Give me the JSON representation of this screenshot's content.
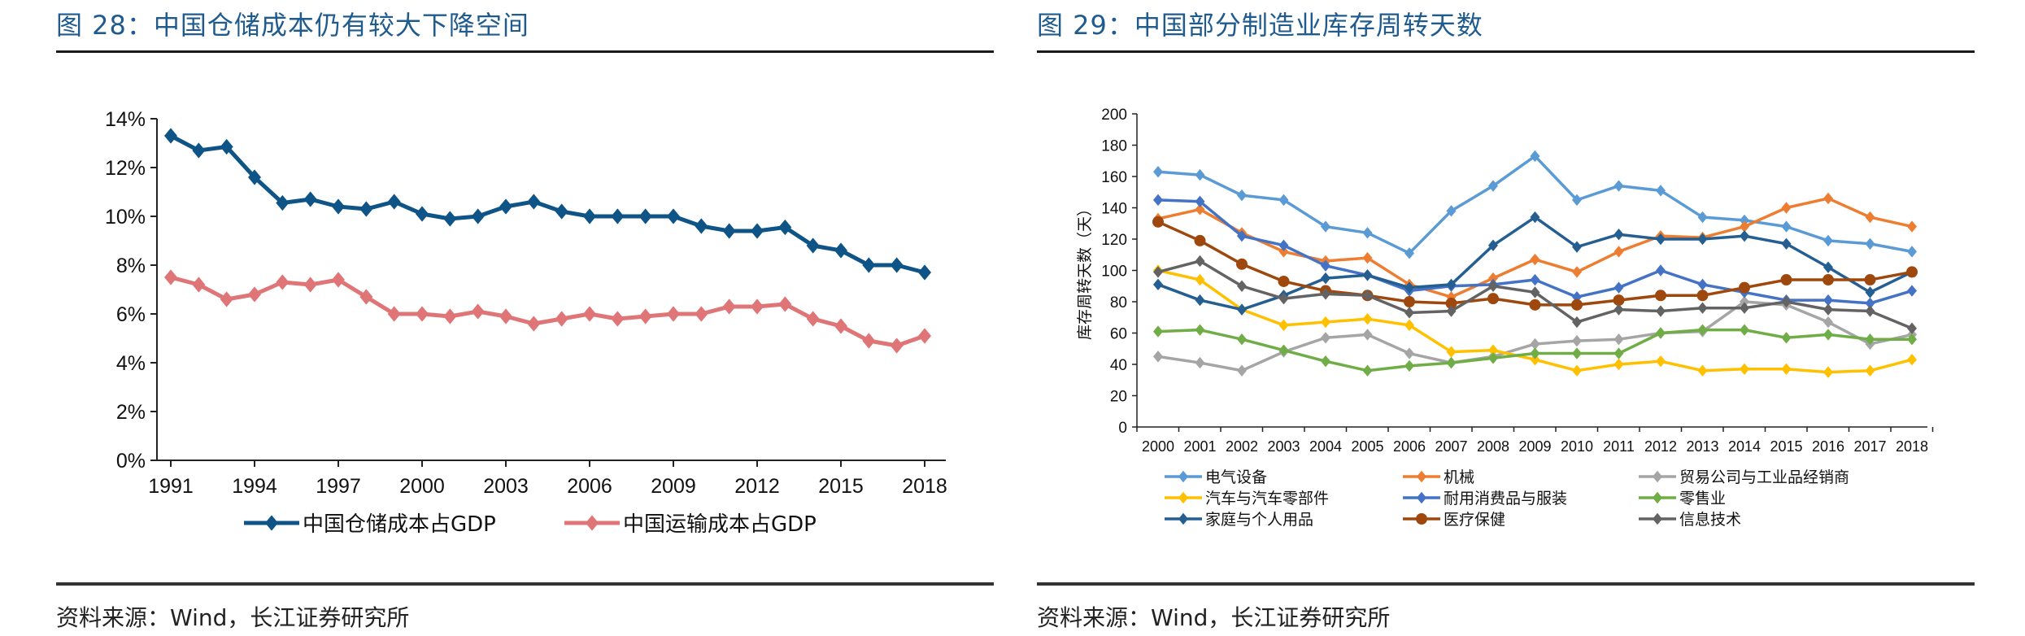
{
  "left_panel": {
    "title": "图 28：中国仓储成本仍有较大下降空间",
    "source": "资料来源：Wind，长江证券研究所"
  },
  "right_panel": {
    "title": "图 29：中国部分制造业库存周转天数",
    "source": "资料来源：Wind，长江证券研究所"
  },
  "chart_data": [
    {
      "type": "line",
      "title": "中国仓储成本仍有较大下降空间",
      "xlabel": "",
      "ylabel": "",
      "x": [
        1991,
        1992,
        1993,
        1994,
        1995,
        1996,
        1997,
        1998,
        1999,
        2000,
        2001,
        2002,
        2003,
        2004,
        2005,
        2006,
        2007,
        2008,
        2009,
        2010,
        2011,
        2012,
        2013,
        2014,
        2015,
        2016,
        2017,
        2018
      ],
      "x_tick_labels": [
        "1991",
        "1994",
        "1997",
        "2000",
        "2003",
        "2006",
        "2009",
        "2012",
        "2015",
        "2018"
      ],
      "y_tick_labels": [
        "0%",
        "2%",
        "4%",
        "6%",
        "8%",
        "10%",
        "12%",
        "14%"
      ],
      "ylim": [
        0,
        14
      ],
      "y_unit": "%",
      "grid": false,
      "legend_position": "bottom",
      "series": [
        {
          "name": "中国仓储成本占GDP",
          "color": "#0E5486",
          "marker": "diamond",
          "values": [
            13.3,
            12.7,
            12.85,
            11.6,
            10.55,
            10.7,
            10.4,
            10.3,
            10.6,
            10.1,
            9.9,
            10.0,
            10.4,
            10.6,
            10.2,
            10.0,
            10.0,
            10.0,
            10.0,
            9.6,
            9.4,
            9.4,
            9.55,
            8.8,
            8.6,
            8.0,
            8.0,
            7.7
          ]
        },
        {
          "name": "中国运输成本占GDP",
          "color": "#E07577",
          "marker": "diamond",
          "values": [
            7.5,
            7.2,
            6.6,
            6.8,
            7.3,
            7.2,
            7.4,
            6.7,
            6.0,
            6.0,
            5.9,
            6.1,
            5.9,
            5.6,
            5.8,
            6.0,
            5.8,
            5.9,
            6.0,
            6.0,
            6.3,
            6.3,
            6.4,
            5.8,
            5.5,
            4.9,
            4.7,
            5.1
          ]
        }
      ]
    },
    {
      "type": "line",
      "title": "中国部分制造业库存周转天数",
      "xlabel": "",
      "ylabel": "库存周转天数（天）",
      "x": [
        "2000",
        "2001",
        "2002",
        "2003",
        "2004",
        "2005",
        "2006",
        "2007",
        "2008",
        "2009",
        "2010",
        "2011",
        "2012",
        "2013",
        "2014",
        "2015",
        "2016",
        "2017",
        "2018"
      ],
      "y_tick_labels": [
        "0",
        "20",
        "40",
        "60",
        "80",
        "100",
        "120",
        "140",
        "160",
        "180",
        "200"
      ],
      "ylim": [
        0,
        200
      ],
      "grid": false,
      "legend_position": "bottom",
      "series": [
        {
          "name": "电气设备",
          "color": "#5B9BD5",
          "marker": "diamond",
          "values": [
            163,
            161,
            148,
            145,
            128,
            124,
            111,
            138,
            154,
            173,
            145,
            154,
            151,
            134,
            132,
            128,
            119,
            117,
            112
          ]
        },
        {
          "name": "机械",
          "color": "#ED7D31",
          "marker": "diamond",
          "values": [
            133,
            139,
            124,
            112,
            106,
            108,
            91,
            83,
            95,
            107,
            99,
            112,
            122,
            121,
            128,
            140,
            146,
            134,
            128
          ]
        },
        {
          "name": "贸易公司与工业品经销商",
          "color": "#A5A5A5",
          "marker": "diamond",
          "values": [
            45,
            41,
            36,
            48,
            57,
            59,
            47,
            41,
            45,
            53,
            55,
            56,
            60,
            61,
            80,
            78,
            67,
            53,
            59
          ]
        },
        {
          "name": "汽车与汽车零部件",
          "color": "#FFC000",
          "marker": "diamond",
          "values": [
            100,
            94,
            75,
            65,
            67,
            69,
            65,
            48,
            49,
            43,
            36,
            40,
            42,
            36,
            37,
            37,
            35,
            36,
            43
          ]
        },
        {
          "name": "耐用消费品与服装",
          "color": "#4472C4",
          "marker": "diamond",
          "values": [
            145,
            144,
            122,
            116,
            103,
            97,
            87,
            90,
            91,
            94,
            83,
            89,
            100,
            91,
            86,
            81,
            81,
            79,
            87
          ]
        },
        {
          "name": "零售业",
          "color": "#70AD47",
          "marker": "diamond",
          "values": [
            61,
            62,
            56,
            49,
            42,
            36,
            39,
            41,
            44,
            47,
            47,
            47,
            60,
            62,
            62,
            57,
            59,
            56,
            56
          ]
        },
        {
          "name": "家庭与个人用品",
          "color": "#255E91",
          "marker": "diamond",
          "values": [
            91,
            81,
            75,
            84,
            95,
            97,
            89,
            91,
            116,
            134,
            115,
            123,
            120,
            120,
            122,
            117,
            102,
            86,
            99
          ]
        },
        {
          "name": "医疗保健",
          "color": "#9E480E",
          "marker": "circle",
          "values": [
            131,
            119,
            104,
            93,
            87,
            84,
            80,
            79,
            82,
            78,
            78,
            81,
            84,
            84,
            89,
            94,
            94,
            94,
            99
          ]
        },
        {
          "name": "信息技术",
          "color": "#636363",
          "marker": "diamond",
          "values": [
            99,
            106,
            90,
            82,
            85,
            84,
            73,
            74,
            90,
            86,
            67,
            75,
            74,
            76,
            76,
            80,
            75,
            74,
            63
          ]
        }
      ]
    }
  ]
}
